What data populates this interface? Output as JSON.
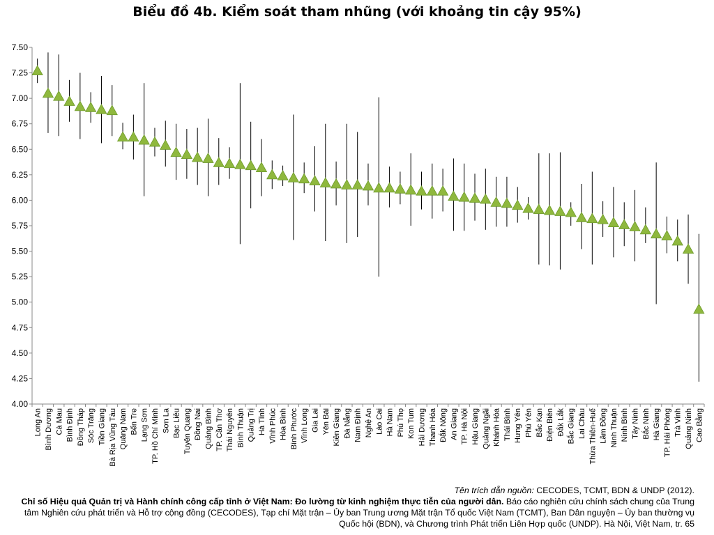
{
  "chart_data": {
    "type": "scatter",
    "title": "Biểu đồ 4b. Kiểm soát tham nhũng (với khoảng tin cậy 95%)",
    "xlabel": "",
    "ylabel": "",
    "ylim": [
      4.0,
      7.5
    ],
    "yticks": [
      "4.00",
      "4.25",
      "4.50",
      "4.75",
      "5.00",
      "5.25",
      "5.50",
      "5.75",
      "6.00",
      "6.25",
      "6.50",
      "6.75",
      "7.00",
      "7.25",
      "7.50"
    ],
    "grid": false,
    "marker_color": "#8fb83e",
    "marker_shape": "triangle",
    "error_bar_color": "#000000",
    "categories": [
      "Long An",
      "Bình Dương",
      "Cà Mau",
      "Bình Định",
      "Đồng Tháp",
      "Sóc Trăng",
      "Tiền Giang",
      "Bà Rịa Vũng Tàu",
      "Quảng Nam",
      "Bến Tre",
      "Lạng Sơn",
      "TP. Hồ Chí Minh",
      "Sơn La",
      "Bạc Liêu",
      "Tuyên Quang",
      "Đồng Nai",
      "Quảng Bình",
      "TP. Cần Thơ",
      "Thái Nguyên",
      "Bình Thuận",
      "Quảng Trị",
      "Hà Tĩnh",
      "Vĩnh Phúc",
      "Hòa Bình",
      "Bình Phước",
      "Vĩnh Long",
      "Gia Lai",
      "Yên Bái",
      "Kiên Giang",
      "Đà Nẵng",
      "Nam Định",
      "Nghệ An",
      "Lào Cai",
      "Hà Nam",
      "Phú Thọ",
      "Kon Tum",
      "Hải Dương",
      "Thanh Hóa",
      "Đắk Nông",
      "An Giang",
      "TP. Hà Nội",
      "Hậu Giang",
      "Quảng Ngãi",
      "Khánh Hòa",
      "Thái Bình",
      "Hưng Yên",
      "Phú Yên",
      "Bắc Kạn",
      "Điện Biên",
      "Đắk Lắk",
      "Bắc Giang",
      "Lai Châu",
      "Thừa Thiên-Huế",
      "Lâm Đồng",
      "Ninh Thuận",
      "Ninh Bình",
      "Tây Ninh",
      "Bắc Ninh",
      "Hà Giang",
      "TP. Hải Phòng",
      "Trà Vinh",
      "Quảng Ninh",
      "Cao Bằng"
    ],
    "values": [
      7.27,
      7.05,
      7.02,
      6.97,
      6.92,
      6.91,
      6.89,
      6.88,
      6.62,
      6.62,
      6.59,
      6.57,
      6.54,
      6.47,
      6.45,
      6.42,
      6.41,
      6.37,
      6.36,
      6.35,
      6.34,
      6.32,
      6.25,
      6.24,
      6.22,
      6.21,
      6.19,
      6.17,
      6.16,
      6.15,
      6.15,
      6.14,
      6.12,
      6.12,
      6.11,
      6.1,
      6.09,
      6.09,
      6.09,
      6.04,
      6.03,
      6.02,
      6.01,
      5.98,
      5.97,
      5.95,
      5.92,
      5.91,
      5.9,
      5.89,
      5.88,
      5.83,
      5.82,
      5.81,
      5.78,
      5.76,
      5.74,
      5.71,
      5.67,
      5.65,
      5.6,
      5.52,
      4.93
    ],
    "ci_low": [
      7.15,
      6.66,
      6.63,
      6.77,
      6.6,
      6.76,
      6.56,
      6.63,
      6.5,
      6.4,
      6.04,
      6.43,
      6.33,
      6.2,
      6.21,
      6.15,
      6.04,
      6.15,
      6.21,
      5.57,
      5.92,
      6.04,
      6.11,
      6.14,
      5.61,
      6.07,
      5.89,
      5.6,
      5.95,
      5.58,
      5.64,
      5.95,
      5.25,
      5.93,
      5.96,
      5.75,
      5.91,
      5.82,
      5.89,
      5.7,
      5.7,
      5.8,
      5.71,
      5.74,
      5.74,
      5.78,
      5.81,
      5.37,
      5.36,
      5.32,
      5.75,
      5.52,
      5.37,
      5.64,
      5.44,
      5.55,
      5.4,
      5.58,
      4.98,
      5.48,
      5.4,
      5.18,
      4.22
    ],
    "ci_high": [
      7.39,
      7.45,
      7.43,
      7.18,
      7.25,
      7.06,
      7.22,
      7.13,
      6.76,
      6.84,
      7.15,
      6.71,
      6.78,
      6.75,
      6.7,
      6.71,
      6.8,
      6.61,
      6.52,
      7.15,
      6.77,
      6.6,
      6.39,
      6.34,
      6.84,
      6.37,
      6.53,
      6.75,
      6.38,
      6.75,
      6.67,
      6.36,
      7.01,
      6.33,
      6.28,
      6.46,
      6.28,
      6.36,
      6.31,
      6.41,
      6.36,
      6.26,
      6.31,
      6.23,
      6.23,
      6.13,
      6.03,
      6.46,
      6.46,
      6.47,
      5.98,
      6.16,
      6.28,
      5.99,
      6.13,
      5.98,
      6.1,
      5.93,
      6.37,
      5.84,
      5.81,
      5.86,
      5.67
    ]
  },
  "footnote": {
    "source_label": "Tên trích dẫn nguồn:",
    "source_text": " CECODES, TCMT, BDN & UNDP (2012).",
    "bold_title": "Chỉ số Hiệu quả Quản trị và Hành chính công cấp tỉnh ở Việt Nam: Đo lường từ kinh nghiệm thực tiễn của người dân.",
    "body_text": " Báo cáo nghiên cứu chính sách chung của Trung tâm Nghiên cứu phát triển và Hỗ trợ cộng đồng (CECODES), Tạp chí Mặt trận – Ủy ban Trung ương Mặt trận Tổ quốc Việt Nam (TCMT), Ban Dân nguyện – Ủy ban thường vụ Quốc hội (BDN), và Chương trình Phát triển Liên Hợp quốc (UNDP). Hà Nội, Việt Nam, tr. 65"
  }
}
